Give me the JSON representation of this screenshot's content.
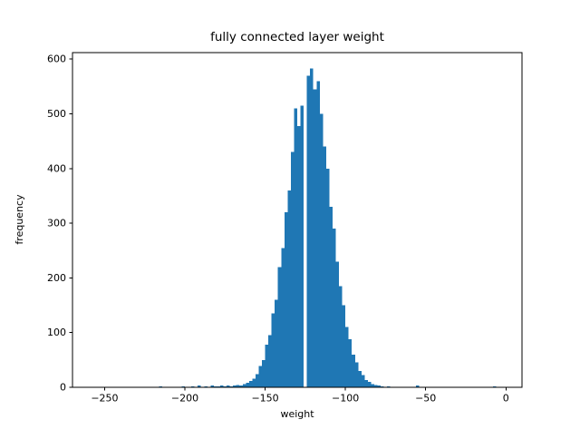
{
  "figure": {
    "title": "fully connected layer weight",
    "xlabel": "weight",
    "ylabel": "frequency"
  },
  "chart_data": {
    "type": "bar",
    "subtype": "histogram",
    "title": "fully connected layer weight",
    "xlabel": "weight",
    "ylabel": "frequency",
    "bar_color": "#1f77b4",
    "background_color": "#ffffff",
    "axis_color": "#000000",
    "grid": false,
    "legend": false,
    "xlim": [
      -270,
      10
    ],
    "ylim": [
      0,
      612
    ],
    "bin_width": 2,
    "xticks": {
      "values": [
        -250,
        -200,
        -150,
        -100,
        -50,
        0
      ],
      "labels": [
        "−250",
        "−200",
        "−150",
        "−100",
        "−50",
        "0"
      ]
    },
    "yticks": {
      "values": [
        0,
        100,
        200,
        300,
        400,
        500,
        600
      ],
      "labels": [
        "0",
        "100",
        "200",
        "300",
        "400",
        "500",
        "600"
      ]
    },
    "bins": [
      [
        -216,
        2
      ],
      [
        -214,
        1
      ],
      [
        -212,
        1
      ],
      [
        -206,
        1
      ],
      [
        -202,
        2
      ],
      [
        -198,
        1
      ],
      [
        -196,
        2
      ],
      [
        -192,
        3
      ],
      [
        -190,
        1
      ],
      [
        -188,
        2
      ],
      [
        -186,
        1
      ],
      [
        -184,
        3
      ],
      [
        -182,
        2
      ],
      [
        -180,
        2
      ],
      [
        -178,
        3
      ],
      [
        -176,
        2
      ],
      [
        -174,
        3
      ],
      [
        -172,
        2
      ],
      [
        -170,
        3
      ],
      [
        -168,
        4
      ],
      [
        -166,
        3
      ],
      [
        -164,
        6
      ],
      [
        -162,
        8
      ],
      [
        -160,
        12
      ],
      [
        -158,
        16
      ],
      [
        -156,
        24
      ],
      [
        -154,
        39
      ],
      [
        -152,
        50
      ],
      [
        -150,
        78
      ],
      [
        -148,
        95
      ],
      [
        -146,
        135
      ],
      [
        -144,
        160
      ],
      [
        -142,
        220
      ],
      [
        -140,
        255
      ],
      [
        -138,
        320
      ],
      [
        -136,
        360
      ],
      [
        -134,
        430
      ],
      [
        -132,
        510
      ],
      [
        -130,
        478
      ],
      [
        -128,
        515
      ],
      [
        -126,
        0
      ],
      [
        -124,
        570
      ],
      [
        -122,
        583
      ],
      [
        -120,
        545
      ],
      [
        -118,
        560
      ],
      [
        -116,
        500
      ],
      [
        -114,
        440
      ],
      [
        -112,
        400
      ],
      [
        -110,
        330
      ],
      [
        -108,
        290
      ],
      [
        -106,
        230
      ],
      [
        -104,
        185
      ],
      [
        -102,
        150
      ],
      [
        -100,
        110
      ],
      [
        -98,
        88
      ],
      [
        -96,
        60
      ],
      [
        -94,
        46
      ],
      [
        -92,
        30
      ],
      [
        -90,
        22
      ],
      [
        -88,
        13
      ],
      [
        -86,
        10
      ],
      [
        -84,
        6
      ],
      [
        -82,
        4
      ],
      [
        -80,
        3
      ],
      [
        -78,
        2
      ],
      [
        -76,
        1
      ],
      [
        -74,
        2
      ],
      [
        -72,
        1
      ],
      [
        -70,
        1
      ],
      [
        -68,
        1
      ],
      [
        -64,
        1
      ],
      [
        -60,
        1
      ],
      [
        -56,
        3
      ],
      [
        -54,
        1
      ],
      [
        -50,
        1
      ],
      [
        -10,
        1
      ],
      [
        -8,
        2
      ],
      [
        -6,
        1
      ]
    ]
  }
}
